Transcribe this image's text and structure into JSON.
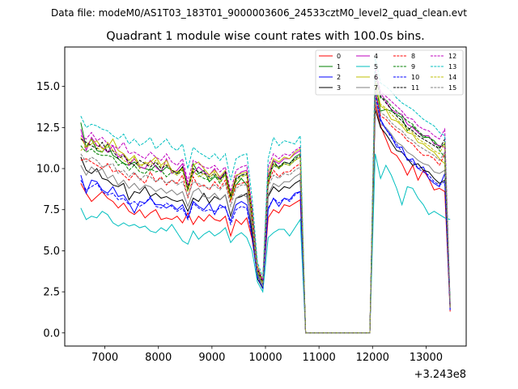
{
  "figure": {
    "suptitle": "Data file: modeM0/AS1T03_183T01_9000003606_24533cztM0_level2_quad_clean.evt"
  },
  "chart_data": {
    "type": "line",
    "title": "Quadrant 1 module wise count rates with 100.0s bins.",
    "xlabel": "",
    "ylabel": "",
    "x_offset_label": "+3.243e8",
    "xlim": [
      6250,
      13750
    ],
    "ylim": [
      -0.8,
      17.4
    ],
    "xticks": [
      7000,
      8000,
      9000,
      10000,
      11000,
      12000,
      13000
    ],
    "xtick_labels": [
      "7000",
      "8000",
      "9000",
      "10000",
      "11000",
      "12000",
      "13000"
    ],
    "yticks": [
      0.0,
      2.5,
      5.0,
      7.5,
      10.0,
      12.5,
      15.0
    ],
    "ytick_labels": [
      "0.0",
      "2.5",
      "5.0",
      "7.5",
      "10.0",
      "12.5",
      "15.0"
    ],
    "grid": false,
    "legend_position": "top-right",
    "x": [
      6550,
      6650,
      6750,
      6850,
      6950,
      7050,
      7150,
      7250,
      7350,
      7450,
      7550,
      7650,
      7750,
      7850,
      7950,
      8050,
      8150,
      8250,
      8350,
      8450,
      8550,
      8650,
      8750,
      8850,
      8950,
      9050,
      9150,
      9250,
      9350,
      9450,
      9550,
      9650,
      9750,
      9850,
      9950,
      10050,
      10150,
      10250,
      10350,
      10450,
      10550,
      10650,
      10750,
      11850,
      11950,
      12050,
      12150,
      12250,
      12350,
      12450,
      12550,
      12650,
      12750,
      12850,
      12950,
      13050,
      13150,
      13250,
      13350,
      13450
    ],
    "series": [
      {
        "name": "0",
        "color": "#ff0000",
        "dash": "solid",
        "values": [
          9.1,
          8.5,
          8.0,
          8.3,
          8.6,
          8.2,
          8.0,
          7.6,
          7.9,
          7.4,
          7.2,
          7.5,
          7.0,
          7.3,
          7.5,
          6.9,
          7.0,
          6.9,
          7.1,
          6.7,
          7.3,
          6.6,
          7.1,
          6.8,
          7.2,
          6.9,
          6.8,
          7.1,
          5.9,
          6.9,
          6.6,
          7.0,
          5.7,
          3.5,
          2.8,
          7.0,
          7.5,
          7.3,
          7.8,
          7.7,
          7.9,
          8.1,
          0,
          0,
          0,
          13.9,
          12.6,
          11.8,
          11.0,
          10.8,
          10.3,
          9.6,
          10.2,
          9.3,
          9.9,
          9.4,
          8.7,
          8.8,
          8.6,
          1.3
        ]
      },
      {
        "name": "1",
        "color": "#008000",
        "dash": "solid",
        "values": [
          12.8,
          11.3,
          11.8,
          11.1,
          11.0,
          11.5,
          10.8,
          10.6,
          10.3,
          10.2,
          10.4,
          10.1,
          10.0,
          9.9,
          10.2,
          9.8,
          10.1,
          9.9,
          9.7,
          10.1,
          8.6,
          10.3,
          9.7,
          9.9,
          9.2,
          9.5,
          9.4,
          9.6,
          8.1,
          9.0,
          9.4,
          9.0,
          7.1,
          3.7,
          3.0,
          9.0,
          10.5,
          10.0,
          10.4,
          10.3,
          10.7,
          10.9,
          0,
          0,
          0,
          15.3,
          13.5,
          13.6,
          13.5,
          13.3,
          13.1,
          12.3,
          12.6,
          12.2,
          11.9,
          11.9,
          11.7,
          11.3,
          11.5,
          1.6
        ]
      },
      {
        "name": "2",
        "color": "#0000ff",
        "dash": "solid",
        "values": [
          9.6,
          8.5,
          9.3,
          9.2,
          8.7,
          8.5,
          8.9,
          8.3,
          8.4,
          7.9,
          7.3,
          8.0,
          7.9,
          8.2,
          7.8,
          7.8,
          7.6,
          7.8,
          7.5,
          7.8,
          7.0,
          8.0,
          7.7,
          7.5,
          7.9,
          7.2,
          7.8,
          7.6,
          6.8,
          7.8,
          8.0,
          7.8,
          5.9,
          3.6,
          2.8,
          7.5,
          8.2,
          7.7,
          8.2,
          8.1,
          8.5,
          8.6,
          0,
          0,
          0,
          14.8,
          13.0,
          12.4,
          12.0,
          11.3,
          11.3,
          10.5,
          10.6,
          10.0,
          10.1,
          9.4,
          9.1,
          8.9,
          9.7,
          1.4
        ]
      },
      {
        "name": "3",
        "color": "#000000",
        "dash": "solid",
        "values": [
          10.7,
          9.9,
          9.7,
          10.0,
          9.4,
          9.3,
          9.0,
          8.9,
          9.1,
          8.1,
          8.6,
          8.5,
          8.9,
          8.3,
          8.5,
          8.2,
          8.3,
          8.1,
          8.0,
          8.1,
          7.4,
          8.2,
          8.0,
          8.5,
          7.9,
          8.3,
          8.1,
          8.4,
          7.1,
          8.2,
          8.3,
          8.5,
          6.1,
          3.3,
          2.7,
          8.3,
          8.9,
          8.6,
          8.9,
          8.8,
          9.1,
          9.3,
          0,
          0,
          0,
          13.6,
          12.5,
          12.1,
          11.6,
          11.1,
          11.0,
          10.6,
          10.2,
          10.3,
          9.9,
          9.8,
          9.4,
          9.1,
          9.3,
          1.5
        ]
      },
      {
        "name": "4",
        "color": "#bf00bf",
        "dash": "solid",
        "values": [
          12.4,
          11.1,
          11.9,
          11.4,
          11.3,
          11.0,
          11.4,
          10.7,
          10.9,
          10.2,
          10.6,
          10.1,
          10.0,
          10.5,
          10.1,
          9.8,
          10.6,
          9.7,
          9.9,
          10.3,
          9.0,
          9.7,
          10.1,
          9.8,
          9.6,
          10.0,
          9.4,
          9.8,
          8.3,
          9.5,
          9.8,
          9.9,
          7.3,
          3.9,
          3.1,
          9.5,
          10.5,
          10.3,
          10.6,
          10.6,
          10.9,
          11.1,
          0,
          0,
          0,
          15.7,
          14.6,
          14.1,
          13.6,
          13.4,
          13.3,
          12.7,
          12.5,
          12.2,
          12.0,
          12.0,
          11.5,
          11.4,
          11.3,
          1.7
        ]
      },
      {
        "name": "5",
        "color": "#00bfbf",
        "dash": "solid",
        "values": [
          7.6,
          6.9,
          7.1,
          7.0,
          7.4,
          7.2,
          6.7,
          6.5,
          6.7,
          6.5,
          6.6,
          6.4,
          6.5,
          6.2,
          6.1,
          6.4,
          6.2,
          6.6,
          6.1,
          5.6,
          5.4,
          6.2,
          5.7,
          6.0,
          6.2,
          5.9,
          6.1,
          6.4,
          5.5,
          5.9,
          6.1,
          5.8,
          5.0,
          3.1,
          2.5,
          5.8,
          6.1,
          6.3,
          6.3,
          5.9,
          6.4,
          6.9,
          0,
          0,
          0,
          10.9,
          9.4,
          10.2,
          9.6,
          8.8,
          7.8,
          8.9,
          8.8,
          8.2,
          7.8,
          7.2,
          7.4,
          7.2,
          7.0,
          6.9
        ]
      },
      {
        "name": "6",
        "color": "#bfbf00",
        "dash": "solid",
        "values": [
          11.9,
          11.3,
          11.5,
          11.7,
          11.2,
          11.3,
          11.8,
          11.1,
          10.9,
          10.5,
          10.8,
          10.2,
          10.3,
          10.4,
          10.7,
          10.2,
          10.5,
          9.9,
          9.8,
          10.0,
          8.8,
          10.2,
          10.4,
          10.0,
          9.6,
          9.9,
          9.5,
          9.9,
          8.4,
          9.6,
          9.7,
          9.8,
          7.6,
          4.1,
          3.2,
          9.8,
          10.6,
          10.4,
          10.7,
          10.6,
          11.0,
          11.2,
          0,
          0,
          0,
          15.4,
          13.8,
          13.6,
          13.0,
          12.9,
          12.6,
          12.2,
          12.1,
          11.6,
          11.5,
          11.2,
          11.0,
          10.6,
          10.3,
          1.6
        ]
      },
      {
        "name": "7",
        "color": "#808080",
        "dash": "solid",
        "values": [
          10.2,
          9.6,
          10.1,
          9.8,
          10.0,
          9.4,
          9.6,
          9.0,
          9.3,
          8.8,
          9.1,
          8.7,
          9.0,
          8.9,
          8.6,
          8.8,
          8.5,
          8.7,
          8.4,
          8.6,
          7.7,
          8.6,
          8.8,
          8.3,
          8.2,
          8.5,
          8.1,
          8.4,
          7.2,
          8.2,
          8.4,
          8.3,
          6.5,
          3.5,
          2.8,
          8.4,
          9.1,
          8.9,
          9.2,
          9.2,
          9.5,
          9.7,
          0,
          0,
          0,
          14.2,
          12.7,
          12.5,
          12.1,
          11.6,
          11.4,
          11.0,
          10.8,
          10.5,
          10.3,
          10.2,
          9.8,
          9.7,
          9.9,
          1.5
        ]
      },
      {
        "name": "8",
        "color": "#ff0000",
        "dash": "dashed",
        "values": [
          10.5,
          10.6,
          10.4,
          10.2,
          10.0,
          10.3,
          9.8,
          9.9,
          9.6,
          9.3,
          9.7,
          9.4,
          9.1,
          9.8,
          9.2,
          9.5,
          9.0,
          9.3,
          9.1,
          9.6,
          8.2,
          9.5,
          8.9,
          9.0,
          8.7,
          9.2,
          8.8,
          9.3,
          8.0,
          9.0,
          9.1,
          9.2,
          6.8,
          3.8,
          3.0,
          9.1,
          9.9,
          9.5,
          9.8,
          9.8,
          10.1,
          10.3,
          0,
          0,
          0,
          14.7,
          13.2,
          13.0,
          12.6,
          12.3,
          12.1,
          11.7,
          11.5,
          11.1,
          10.8,
          10.8,
          10.6,
          10.2,
          10.9,
          1.6
        ]
      },
      {
        "name": "9",
        "color": "#008000",
        "dash": "dashed",
        "values": [
          11.4,
          11.0,
          11.2,
          10.9,
          10.8,
          10.8,
          10.7,
          10.2,
          10.4,
          9.9,
          10.2,
          9.8,
          9.7,
          10.0,
          9.8,
          9.9,
          9.5,
          9.8,
          9.6,
          9.9,
          8.7,
          9.8,
          9.6,
          9.4,
          9.3,
          9.6,
          9.1,
          9.7,
          8.2,
          9.3,
          9.6,
          9.6,
          7.0,
          3.8,
          3.0,
          9.3,
          10.2,
          10.0,
          10.3,
          10.2,
          10.5,
          10.7,
          0,
          0,
          0,
          15.5,
          14.3,
          14.2,
          13.8,
          13.5,
          13.2,
          12.9,
          12.7,
          12.3,
          12.0,
          11.9,
          11.6,
          11.1,
          10.7,
          1.7
        ]
      },
      {
        "name": "10",
        "color": "#0000ff",
        "dash": "dashed",
        "values": [
          9.3,
          8.7,
          8.9,
          9.1,
          8.6,
          8.4,
          8.5,
          8.1,
          8.2,
          7.8,
          8.0,
          7.7,
          7.9,
          8.3,
          7.7,
          7.6,
          7.9,
          7.7,
          7.4,
          7.6,
          6.9,
          7.9,
          7.6,
          7.4,
          7.5,
          7.4,
          7.6,
          7.7,
          6.6,
          7.5,
          7.7,
          7.6,
          5.8,
          3.4,
          2.7,
          7.6,
          8.2,
          7.9,
          8.2,
          8.0,
          8.4,
          8.6,
          0,
          0,
          0,
          14.5,
          12.9,
          12.4,
          11.9,
          11.5,
          11.0,
          10.6,
          10.4,
          10.0,
          9.8,
          9.6,
          9.2,
          9.0,
          9.2,
          1.4
        ]
      },
      {
        "name": "11",
        "color": "#000000",
        "dash": "dashed",
        "values": [
          11.8,
          11.6,
          11.4,
          11.2,
          11.6,
          11.0,
          11.1,
          10.6,
          10.8,
          10.4,
          10.2,
          10.5,
          10.3,
          10.1,
          10.4,
          10.0,
          10.2,
          9.9,
          9.7,
          10.1,
          8.8,
          10.0,
          9.8,
          9.7,
          9.5,
          9.7,
          9.3,
          9.8,
          8.3,
          9.4,
          9.6,
          9.7,
          7.3,
          3.9,
          3.1,
          9.5,
          10.3,
          10.1,
          10.4,
          10.3,
          10.6,
          10.8,
          0,
          0,
          0,
          15.9,
          14.4,
          14.0,
          13.6,
          13.2,
          12.9,
          12.5,
          12.3,
          12.0,
          11.8,
          11.6,
          11.4,
          11.2,
          11.8,
          1.7
        ]
      },
      {
        "name": "12",
        "color": "#bf00bf",
        "dash": "dashed",
        "values": [
          12.0,
          11.8,
          12.2,
          11.7,
          11.9,
          11.5,
          11.4,
          11.2,
          11.6,
          10.9,
          11.0,
          10.8,
          10.6,
          11.0,
          10.7,
          10.5,
          10.9,
          10.4,
          10.2,
          10.6,
          9.2,
          10.5,
          10.3,
          10.1,
          10.0,
          10.2,
          9.8,
          10.1,
          8.6,
          9.9,
          10.1,
          10.2,
          7.6,
          4.0,
          3.2,
          10.1,
          10.9,
          10.6,
          10.9,
          10.8,
          11.1,
          11.3,
          0,
          0,
          0,
          16.2,
          14.7,
          14.4,
          14.1,
          13.8,
          13.5,
          13.1,
          13.0,
          12.6,
          12.4,
          12.3,
          12.0,
          11.8,
          12.4,
          1.8
        ]
      },
      {
        "name": "13",
        "color": "#00bfbf",
        "dash": "dashed",
        "values": [
          13.2,
          12.5,
          12.7,
          12.6,
          12.4,
          12.3,
          12.0,
          11.8,
          12.1,
          11.5,
          11.8,
          11.4,
          11.6,
          11.9,
          11.2,
          11.5,
          11.8,
          11.3,
          11.1,
          11.5,
          10.0,
          11.3,
          11.0,
          10.8,
          10.6,
          10.9,
          10.5,
          10.9,
          9.3,
          10.6,
          10.8,
          10.9,
          8.2,
          4.3,
          3.4,
          10.6,
          11.9,
          11.4,
          11.7,
          11.6,
          11.5,
          12.0,
          0,
          0,
          0,
          16.8,
          15.2,
          15.0,
          14.7,
          14.3,
          14.0,
          13.8,
          13.6,
          13.3,
          13.0,
          12.8,
          12.6,
          12.2,
          12.0,
          1.9
        ]
      },
      {
        "name": "14",
        "color": "#bfbf00",
        "dash": "dashed",
        "values": [
          11.1,
          11.4,
          11.8,
          11.3,
          11.0,
          11.6,
          11.1,
          10.9,
          10.5,
          10.3,
          10.7,
          10.0,
          10.4,
          10.2,
          10.5,
          10.1,
          10.3,
          9.8,
          9.6,
          10.0,
          8.6,
          9.9,
          9.5,
          9.7,
          9.4,
          9.8,
          9.2,
          9.6,
          8.1,
          9.2,
          9.5,
          9.6,
          7.2,
          3.8,
          3.0,
          9.4,
          10.3,
          10.0,
          10.3,
          10.2,
          10.5,
          10.7,
          0,
          0,
          0,
          15.1,
          13.9,
          13.7,
          13.3,
          13.0,
          12.7,
          12.4,
          12.2,
          11.8,
          11.6,
          11.4,
          11.1,
          10.9,
          11.6,
          1.6
        ]
      },
      {
        "name": "15",
        "color": "#808080",
        "dash": "dashed",
        "values": [
          10.9,
          10.4,
          10.7,
          10.5,
          10.1,
          10.2,
          10.3,
          9.7,
          9.9,
          9.5,
          9.8,
          9.3,
          9.6,
          9.5,
          9.2,
          9.4,
          9.1,
          9.3,
          9.0,
          9.2,
          8.3,
          9.2,
          9.1,
          8.9,
          8.8,
          9.0,
          8.7,
          9.1,
          7.7,
          8.8,
          9.0,
          9.0,
          6.7,
          3.6,
          2.9,
          8.9,
          9.6,
          9.4,
          9.7,
          9.6,
          9.9,
          10.1,
          0,
          0,
          0,
          14.9,
          13.4,
          13.2,
          12.8,
          12.5,
          12.3,
          11.9,
          11.7,
          11.4,
          11.2,
          11.0,
          10.8,
          10.5,
          11.0,
          1.6
        ]
      }
    ]
  }
}
